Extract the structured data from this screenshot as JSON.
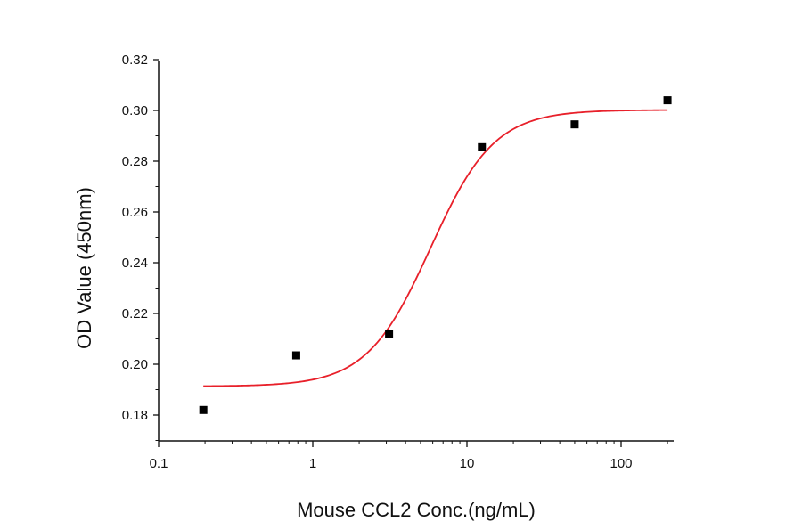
{
  "chart_data": {
    "type": "scatter",
    "xlabel": "Mouse CCL2 Conc.(ng/mL)",
    "ylabel": "OD Value (450nm)",
    "x_scale": "log",
    "xlim": [
      0.1,
      220
    ],
    "ylim": [
      0.17,
      0.32
    ],
    "x_ticks": [
      0.1,
      1,
      10,
      100
    ],
    "x_tick_labels": [
      "0.1",
      "1",
      "10",
      "100"
    ],
    "y_ticks": [
      0.18,
      0.2,
      0.22,
      0.24,
      0.26,
      0.28,
      0.3,
      0.32
    ],
    "y_tick_labels": [
      "0.18",
      "0.20",
      "0.22",
      "0.24",
      "0.26",
      "0.28",
      "0.30",
      "0.32"
    ],
    "grid": false,
    "points": [
      {
        "x": 0.195,
        "y": 0.182
      },
      {
        "x": 0.781,
        "y": 0.2035
      },
      {
        "x": 3.125,
        "y": 0.212
      },
      {
        "x": 12.5,
        "y": 0.2855
      },
      {
        "x": 50,
        "y": 0.2945
      },
      {
        "x": 200,
        "y": 0.304
      }
    ],
    "fit_curve": {
      "model": "4PL",
      "bottom": 0.1913,
      "top": 0.3002,
      "ec50": 5.8,
      "hill": 2.1,
      "x_range": [
        0.195,
        200
      ],
      "color": "#e8202a"
    },
    "marker_color": "#000000"
  }
}
